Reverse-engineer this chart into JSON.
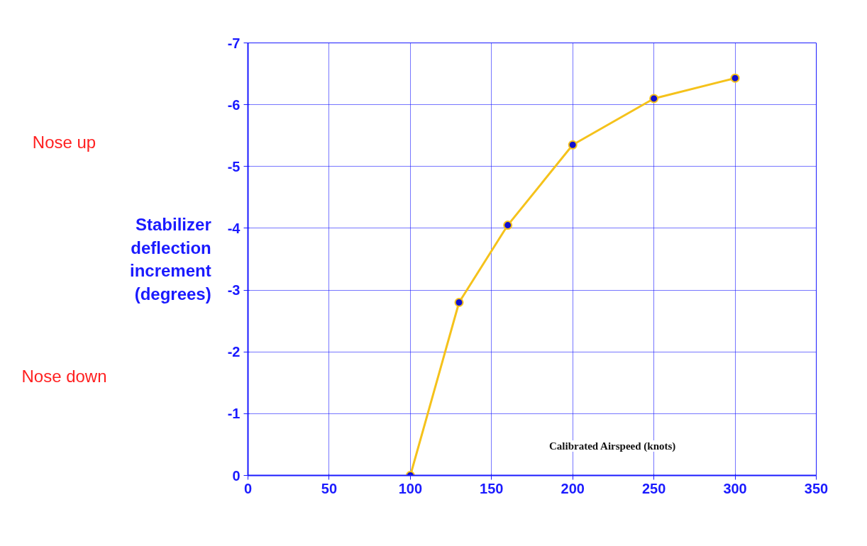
{
  "chart_data": {
    "type": "line",
    "xlabel": "Calibrated Airspeed (knots)",
    "ylabel": "Stabilizer deflection increment (degrees)",
    "x": [
      100,
      130,
      160,
      200,
      250,
      300
    ],
    "series": [
      {
        "color": "#f5c21b",
        "values": [
          0,
          -2.8,
          -4.05,
          -5.35,
          -6.1,
          -6.43
        ]
      }
    ],
    "xlim": [
      0,
      350
    ],
    "xticks": [
      0,
      50,
      100,
      150,
      200,
      250,
      300,
      350
    ],
    "ylim": [
      0,
      -7
    ],
    "yticks": [
      0,
      -1,
      -2,
      -3,
      -4,
      -5,
      -6,
      -7
    ],
    "grid": true,
    "marker": "circle",
    "line_style": "solid",
    "annotations": [
      "Nose up",
      "Nose down"
    ]
  }
}
